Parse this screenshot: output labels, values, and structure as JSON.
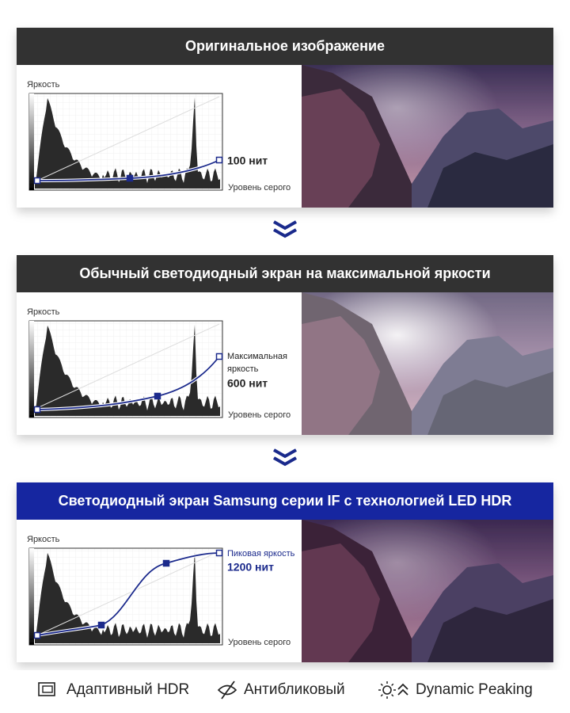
{
  "panels": [
    {
      "title": "Оригинальное изображение",
      "y_label": "Яркость",
      "x_label": "Уровень серого",
      "peak_label": [
        "100 нит"
      ]
    },
    {
      "title": "Обычный светодиодный экран на максимальной яркости",
      "y_label": "Яркость",
      "x_label": "Уровень серого",
      "peak_label": [
        "Максимальная",
        "яркость",
        "600 нит"
      ]
    },
    {
      "title": "Светодиодный экран Samsung серии IF с технологией LED HDR",
      "y_label": "Яркость",
      "x_label": "Уровень серого",
      "peak_label": [
        "Пиковая яркость",
        "1200 нит"
      ]
    }
  ],
  "features": [
    "Адаптивный HDR",
    "Антибликовый",
    "Dynamic Peaking"
  ]
}
